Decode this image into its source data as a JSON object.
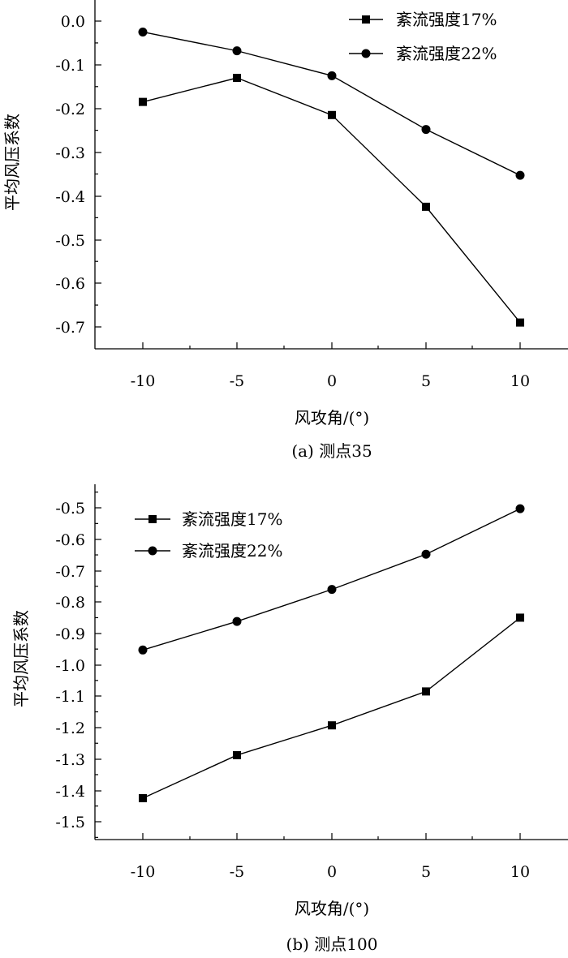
{
  "chart_data": [
    {
      "type": "line",
      "caption": "(a)  测点35",
      "xlabel": "风攻角/(°)",
      "ylabel": "平均风压系数",
      "x": [
        -10,
        -5,
        0,
        5,
        10
      ],
      "xticks": [
        "-10",
        "-5",
        "0",
        "5",
        "10"
      ],
      "yticks": [
        "0.0",
        "-0.1",
        "-0.2",
        "-0.3",
        "-0.4",
        "-0.5",
        "-0.6",
        "-0.7"
      ],
      "ylim": [
        -0.75,
        0.03
      ],
      "legend_position": "top-right",
      "series": [
        {
          "name": "紊流强度17%",
          "marker": "square",
          "values": [
            -0.185,
            -0.13,
            -0.215,
            -0.425,
            -0.69
          ]
        },
        {
          "name": "紊流强度22%",
          "marker": "circle",
          "values": [
            -0.025,
            -0.068,
            -0.125,
            -0.248,
            -0.353
          ]
        }
      ]
    },
    {
      "type": "line",
      "caption": "(b)  测点100",
      "xlabel": "风攻角/(°)",
      "ylabel": "平均风压系数",
      "x": [
        -10,
        -5,
        0,
        5,
        10
      ],
      "xticks": [
        "-10",
        "-5",
        "0",
        "5",
        "10"
      ],
      "yticks": [
        "-0.5",
        "-0.6",
        "-0.7",
        "-0.8",
        "-0.9",
        "-1.0",
        "-1.1",
        "-1.2",
        "-1.3",
        "-1.4",
        "-1.5"
      ],
      "ylim": [
        -1.555,
        -0.47
      ],
      "legend_position": "top-left",
      "series": [
        {
          "name": "紊流强度17%",
          "marker": "square",
          "values": [
            -1.425,
            -1.288,
            -1.193,
            -1.085,
            -0.85
          ]
        },
        {
          "name": "紊流强度22%",
          "marker": "circle",
          "values": [
            -0.953,
            -0.862,
            -0.76,
            -0.648,
            -0.503
          ]
        }
      ]
    }
  ]
}
